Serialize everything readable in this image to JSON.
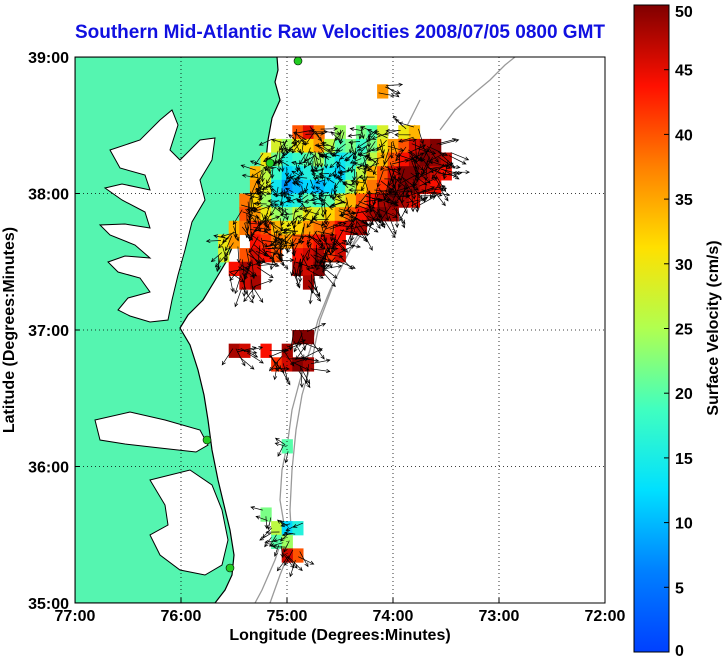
{
  "chart_data": {
    "type": "heatmap",
    "title": "Southern Mid-Atlantic Raw Velocities 2008/07/05 0800 GMT",
    "xlabel": "Longitude (Degrees:Minutes)",
    "ylabel": "Latitude (Degrees:Minutes)",
    "xlim": [
      -77,
      -72
    ],
    "ylim": [
      35,
      39
    ],
    "xticks": [
      -77,
      -76,
      -75,
      -74,
      -73,
      -72
    ],
    "xtick_labels": [
      "77:00",
      "76:00",
      "75:00",
      "74:00",
      "73:00",
      "72:00"
    ],
    "yticks": [
      35,
      36,
      37,
      38,
      39
    ],
    "ytick_labels": [
      "35:00",
      "36:00",
      "37:00",
      "38:00",
      "39:00"
    ],
    "grid": "dotted",
    "colorbar": {
      "label": "Surface Velocity (cm/s)",
      "min": 0,
      "max": 50,
      "ticks": [
        0,
        5,
        10,
        15,
        20,
        25,
        30,
        35,
        40,
        45,
        50
      ],
      "tick_labels": [
        "0",
        "5",
        "10",
        "15",
        "20",
        "25",
        "30",
        "35",
        "40",
        "45",
        "50"
      ],
      "colormap": "jet"
    },
    "colors": {
      "land": "#55f5b0",
      "coast": "#000000",
      "bathymetry": "#9a9a9a",
      "station": "#22cc22",
      "vectors": "#000000"
    },
    "velocity_cells": [
      {
        "lon": -74.9,
        "lat": 38.45,
        "speed": 40
      },
      {
        "lon": -74.8,
        "lat": 38.45,
        "speed": 45
      },
      {
        "lon": -74.7,
        "lat": 38.45,
        "speed": 38
      },
      {
        "lon": -74.5,
        "lat": 38.45,
        "speed": 24
      },
      {
        "lon": -74.3,
        "lat": 38.45,
        "speed": 22
      },
      {
        "lon": -74.2,
        "lat": 38.45,
        "speed": 20
      },
      {
        "lon": -74.1,
        "lat": 38.45,
        "speed": 28
      },
      {
        "lon": -73.9,
        "lat": 38.45,
        "speed": 30
      },
      {
        "lon": -73.8,
        "lat": 38.45,
        "speed": 34
      },
      {
        "lon": -75.1,
        "lat": 38.35,
        "speed": 28
      },
      {
        "lon": -75.0,
        "lat": 38.35,
        "speed": 24
      },
      {
        "lon": -74.9,
        "lat": 38.35,
        "speed": 30
      },
      {
        "lon": -74.8,
        "lat": 38.35,
        "speed": 32
      },
      {
        "lon": -74.7,
        "lat": 38.35,
        "speed": 36
      },
      {
        "lon": -74.6,
        "lat": 38.35,
        "speed": 26
      },
      {
        "lon": -74.5,
        "lat": 38.35,
        "speed": 20
      },
      {
        "lon": -74.4,
        "lat": 38.35,
        "speed": 22
      },
      {
        "lon": -74.3,
        "lat": 38.35,
        "speed": 18
      },
      {
        "lon": -74.2,
        "lat": 38.35,
        "speed": 22
      },
      {
        "lon": -74.1,
        "lat": 38.35,
        "speed": 30
      },
      {
        "lon": -74.0,
        "lat": 38.35,
        "speed": 36
      },
      {
        "lon": -73.9,
        "lat": 38.35,
        "speed": 40
      },
      {
        "lon": -73.8,
        "lat": 38.35,
        "speed": 46
      },
      {
        "lon": -73.7,
        "lat": 38.35,
        "speed": 48
      },
      {
        "lon": -73.6,
        "lat": 38.35,
        "speed": 50
      },
      {
        "lon": -75.2,
        "lat": 38.25,
        "speed": 30
      },
      {
        "lon": -75.1,
        "lat": 38.25,
        "speed": 22
      },
      {
        "lon": -75.0,
        "lat": 38.25,
        "speed": 16
      },
      {
        "lon": -74.9,
        "lat": 38.25,
        "speed": 18
      },
      {
        "lon": -74.8,
        "lat": 38.25,
        "speed": 20
      },
      {
        "lon": -74.7,
        "lat": 38.25,
        "speed": 24
      },
      {
        "lon": -74.6,
        "lat": 38.25,
        "speed": 18
      },
      {
        "lon": -74.5,
        "lat": 38.25,
        "speed": 14
      },
      {
        "lon": -74.4,
        "lat": 38.25,
        "speed": 16
      },
      {
        "lon": -74.3,
        "lat": 38.25,
        "speed": 20
      },
      {
        "lon": -74.2,
        "lat": 38.25,
        "speed": 26
      },
      {
        "lon": -74.1,
        "lat": 38.25,
        "speed": 34
      },
      {
        "lon": -74.0,
        "lat": 38.25,
        "speed": 40
      },
      {
        "lon": -73.9,
        "lat": 38.25,
        "speed": 44
      },
      {
        "lon": -73.8,
        "lat": 38.25,
        "speed": 48
      },
      {
        "lon": -73.7,
        "lat": 38.25,
        "speed": 50
      },
      {
        "lon": -73.6,
        "lat": 38.25,
        "speed": 49
      },
      {
        "lon": -73.5,
        "lat": 38.25,
        "speed": 47
      },
      {
        "lon": -75.3,
        "lat": 38.15,
        "speed": 34
      },
      {
        "lon": -75.2,
        "lat": 38.15,
        "speed": 26
      },
      {
        "lon": -75.1,
        "lat": 38.15,
        "speed": 18
      },
      {
        "lon": -75.0,
        "lat": 38.15,
        "speed": 12
      },
      {
        "lon": -74.9,
        "lat": 38.15,
        "speed": 14
      },
      {
        "lon": -74.8,
        "lat": 38.15,
        "speed": 16
      },
      {
        "lon": -74.7,
        "lat": 38.15,
        "speed": 18
      },
      {
        "lon": -74.6,
        "lat": 38.15,
        "speed": 14
      },
      {
        "lon": -74.5,
        "lat": 38.15,
        "speed": 12
      },
      {
        "lon": -74.4,
        "lat": 38.15,
        "speed": 18
      },
      {
        "lon": -74.3,
        "lat": 38.15,
        "speed": 26
      },
      {
        "lon": -74.2,
        "lat": 38.15,
        "speed": 34
      },
      {
        "lon": -74.1,
        "lat": 38.15,
        "speed": 40
      },
      {
        "lon": -74.0,
        "lat": 38.15,
        "speed": 46
      },
      {
        "lon": -73.9,
        "lat": 38.15,
        "speed": 50
      },
      {
        "lon": -73.8,
        "lat": 38.15,
        "speed": 50
      },
      {
        "lon": -73.7,
        "lat": 38.15,
        "speed": 48
      },
      {
        "lon": -73.6,
        "lat": 38.15,
        "speed": 46
      },
      {
        "lon": -73.5,
        "lat": 38.15,
        "speed": 44
      },
      {
        "lon": -75.3,
        "lat": 38.05,
        "speed": 36
      },
      {
        "lon": -75.2,
        "lat": 38.05,
        "speed": 28
      },
      {
        "lon": -75.1,
        "lat": 38.05,
        "speed": 14
      },
      {
        "lon": -75.0,
        "lat": 38.05,
        "speed": 8
      },
      {
        "lon": -74.9,
        "lat": 38.05,
        "speed": 10
      },
      {
        "lon": -74.8,
        "lat": 38.05,
        "speed": 12
      },
      {
        "lon": -74.7,
        "lat": 38.05,
        "speed": 10
      },
      {
        "lon": -74.6,
        "lat": 38.05,
        "speed": 12
      },
      {
        "lon": -74.5,
        "lat": 38.05,
        "speed": 16
      },
      {
        "lon": -74.4,
        "lat": 38.05,
        "speed": 24
      },
      {
        "lon": -74.3,
        "lat": 38.05,
        "speed": 32
      },
      {
        "lon": -74.2,
        "lat": 38.05,
        "speed": 38
      },
      {
        "lon": -74.1,
        "lat": 38.05,
        "speed": 42
      },
      {
        "lon": -74.0,
        "lat": 38.05,
        "speed": 48
      },
      {
        "lon": -73.9,
        "lat": 38.05,
        "speed": 50
      },
      {
        "lon": -73.8,
        "lat": 38.05,
        "speed": 49
      },
      {
        "lon": -73.7,
        "lat": 38.05,
        "speed": 46
      },
      {
        "lon": -73.6,
        "lat": 38.05,
        "speed": 44
      },
      {
        "lon": -75.4,
        "lat": 37.95,
        "speed": 38
      },
      {
        "lon": -75.3,
        "lat": 37.95,
        "speed": 32
      },
      {
        "lon": -75.2,
        "lat": 37.95,
        "speed": 24
      },
      {
        "lon": -75.1,
        "lat": 37.95,
        "speed": 16
      },
      {
        "lon": -75.0,
        "lat": 37.95,
        "speed": 14
      },
      {
        "lon": -74.9,
        "lat": 37.95,
        "speed": 16
      },
      {
        "lon": -74.8,
        "lat": 37.95,
        "speed": 20
      },
      {
        "lon": -74.7,
        "lat": 37.95,
        "speed": 18
      },
      {
        "lon": -74.6,
        "lat": 37.95,
        "speed": 20
      },
      {
        "lon": -74.5,
        "lat": 37.95,
        "speed": 28
      },
      {
        "lon": -74.4,
        "lat": 37.95,
        "speed": 34
      },
      {
        "lon": -74.3,
        "lat": 37.95,
        "speed": 40
      },
      {
        "lon": -74.2,
        "lat": 37.95,
        "speed": 44
      },
      {
        "lon": -74.1,
        "lat": 37.95,
        "speed": 48
      },
      {
        "lon": -74.0,
        "lat": 37.95,
        "speed": 50
      },
      {
        "lon": -73.9,
        "lat": 37.95,
        "speed": 48
      },
      {
        "lon": -73.8,
        "lat": 37.95,
        "speed": 45
      },
      {
        "lon": -75.4,
        "lat": 37.85,
        "speed": 40
      },
      {
        "lon": -75.3,
        "lat": 37.85,
        "speed": 36
      },
      {
        "lon": -75.2,
        "lat": 37.85,
        "speed": 30
      },
      {
        "lon": -75.1,
        "lat": 37.85,
        "speed": 24
      },
      {
        "lon": -75.0,
        "lat": 37.85,
        "speed": 22
      },
      {
        "lon": -74.9,
        "lat": 37.85,
        "speed": 26
      },
      {
        "lon": -74.8,
        "lat": 37.85,
        "speed": 30
      },
      {
        "lon": -74.7,
        "lat": 37.85,
        "speed": 28
      },
      {
        "lon": -74.6,
        "lat": 37.85,
        "speed": 32
      },
      {
        "lon": -74.5,
        "lat": 37.85,
        "speed": 36
      },
      {
        "lon": -74.4,
        "lat": 37.85,
        "speed": 40
      },
      {
        "lon": -74.3,
        "lat": 37.85,
        "speed": 44
      },
      {
        "lon": -74.2,
        "lat": 37.85,
        "speed": 48
      },
      {
        "lon": -74.1,
        "lat": 37.85,
        "speed": 50
      },
      {
        "lon": -74.0,
        "lat": 37.85,
        "speed": 48
      },
      {
        "lon": -75.5,
        "lat": 37.75,
        "speed": 34
      },
      {
        "lon": -75.4,
        "lat": 37.75,
        "speed": 38
      },
      {
        "lon": -75.3,
        "lat": 37.75,
        "speed": 42
      },
      {
        "lon": -75.2,
        "lat": 37.75,
        "speed": 40
      },
      {
        "lon": -75.1,
        "lat": 37.75,
        "speed": 34
      },
      {
        "lon": -75.0,
        "lat": 37.75,
        "speed": 30
      },
      {
        "lon": -74.9,
        "lat": 37.75,
        "speed": 32
      },
      {
        "lon": -74.8,
        "lat": 37.75,
        "speed": 36
      },
      {
        "lon": -74.7,
        "lat": 37.75,
        "speed": 38
      },
      {
        "lon": -74.6,
        "lat": 37.75,
        "speed": 40
      },
      {
        "lon": -74.5,
        "lat": 37.75,
        "speed": 44
      },
      {
        "lon": -74.4,
        "lat": 37.75,
        "speed": 46
      },
      {
        "lon": -74.3,
        "lat": 37.75,
        "speed": 48
      },
      {
        "lon": -75.6,
        "lat": 37.65,
        "speed": 30
      },
      {
        "lon": -75.5,
        "lat": 37.65,
        "speed": 36
      },
      {
        "lon": -75.3,
        "lat": 37.65,
        "speed": 44
      },
      {
        "lon": -75.2,
        "lat": 37.65,
        "speed": 42
      },
      {
        "lon": -75.1,
        "lat": 37.65,
        "speed": 38
      },
      {
        "lon": -75.0,
        "lat": 37.65,
        "speed": 36
      },
      {
        "lon": -74.9,
        "lat": 37.65,
        "speed": 40
      },
      {
        "lon": -74.8,
        "lat": 37.65,
        "speed": 42
      },
      {
        "lon": -74.7,
        "lat": 37.65,
        "speed": 44
      },
      {
        "lon": -74.6,
        "lat": 37.65,
        "speed": 46
      },
      {
        "lon": -74.5,
        "lat": 37.65,
        "speed": 44
      },
      {
        "lon": -75.6,
        "lat": 37.55,
        "speed": 28
      },
      {
        "lon": -75.4,
        "lat": 37.55,
        "speed": 40
      },
      {
        "lon": -75.3,
        "lat": 37.55,
        "speed": 46
      },
      {
        "lon": -75.2,
        "lat": 37.55,
        "speed": 44
      },
      {
        "lon": -75.1,
        "lat": 37.55,
        "speed": 40
      },
      {
        "lon": -74.9,
        "lat": 37.55,
        "speed": 44
      },
      {
        "lon": -74.8,
        "lat": 37.55,
        "speed": 46
      },
      {
        "lon": -74.7,
        "lat": 37.55,
        "speed": 48
      },
      {
        "lon": -74.6,
        "lat": 37.55,
        "speed": 42
      },
      {
        "lon": -74.5,
        "lat": 37.55,
        "speed": 46
      },
      {
        "lon": -75.5,
        "lat": 37.45,
        "speed": 44
      },
      {
        "lon": -75.4,
        "lat": 37.45,
        "speed": 48
      },
      {
        "lon": -75.3,
        "lat": 37.45,
        "speed": 46
      },
      {
        "lon": -74.9,
        "lat": 37.45,
        "speed": 48
      },
      {
        "lon": -74.8,
        "lat": 37.45,
        "speed": 46
      },
      {
        "lon": -74.7,
        "lat": 37.45,
        "speed": 50
      },
      {
        "lon": -75.4,
        "lat": 37.35,
        "speed": 46
      },
      {
        "lon": -75.3,
        "lat": 37.35,
        "speed": 48
      },
      {
        "lon": -74.8,
        "lat": 37.35,
        "speed": 48
      },
      {
        "lon": -75.5,
        "lat": 36.85,
        "speed": 48
      },
      {
        "lon": -75.4,
        "lat": 36.85,
        "speed": 46
      },
      {
        "lon": -75.2,
        "lat": 36.85,
        "speed": 44
      },
      {
        "lon": -75.0,
        "lat": 36.85,
        "speed": 48
      },
      {
        "lon": -74.9,
        "lat": 36.95,
        "speed": 50
      },
      {
        "lon": -74.8,
        "lat": 36.95,
        "speed": 50
      },
      {
        "lon": -75.1,
        "lat": 36.75,
        "speed": 42
      },
      {
        "lon": -75.0,
        "lat": 36.75,
        "speed": 46
      },
      {
        "lon": -74.9,
        "lat": 36.75,
        "speed": 50
      },
      {
        "lon": -74.8,
        "lat": 36.75,
        "speed": 48
      },
      {
        "lon": -75.0,
        "lat": 36.15,
        "speed": 20
      },
      {
        "lon": -75.2,
        "lat": 35.65,
        "speed": 22
      },
      {
        "lon": -75.1,
        "lat": 35.55,
        "speed": 26
      },
      {
        "lon": -75.0,
        "lat": 35.55,
        "speed": 12
      },
      {
        "lon": -74.9,
        "lat": 35.55,
        "speed": 16
      },
      {
        "lon": -75.1,
        "lat": 35.45,
        "speed": 20
      },
      {
        "lon": -75.0,
        "lat": 35.45,
        "speed": 24
      },
      {
        "lon": -74.9,
        "lat": 35.35,
        "speed": 40
      },
      {
        "lon": -75.0,
        "lat": 35.35,
        "speed": 46
      },
      {
        "lon": -74.1,
        "lat": 38.75,
        "speed": 36
      }
    ]
  }
}
